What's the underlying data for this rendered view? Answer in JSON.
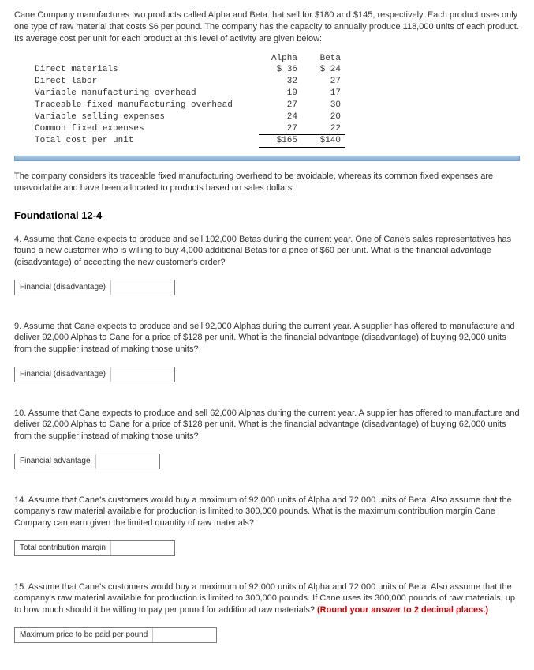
{
  "intro": "Cane Company manufactures two products called Alpha and Beta that sell for $180 and $145, respectively. Each product uses only one type of raw material that costs $6 per pound. The company has the capacity to annually produce 118,000 units of each product. Its average cost per unit for each product at this level of activity are given below:",
  "table": {
    "headers": {
      "label": "",
      "alpha": "Alpha",
      "beta": "Beta"
    },
    "rows": [
      {
        "label": "Direct materials",
        "alpha": "$ 36",
        "beta": "$ 24"
      },
      {
        "label": "Direct labor",
        "alpha": "32",
        "beta": "27"
      },
      {
        "label": "Variable manufacturing overhead",
        "alpha": "19",
        "beta": "17"
      },
      {
        "label": "Traceable fixed manufacturing overhead",
        "alpha": "27",
        "beta": "30"
      },
      {
        "label": "Variable selling expenses",
        "alpha": "24",
        "beta": "20"
      },
      {
        "label": "Common fixed expenses",
        "alpha": "27",
        "beta": "22"
      }
    ],
    "total": {
      "label": "Total cost per unit",
      "alpha": "$165",
      "beta": "$140"
    }
  },
  "note": "The company considers its traceable fixed manufacturing overhead to be avoidable, whereas its common fixed expenses are unavoidable and have been allocated to products based on sales dollars.",
  "section_title": "Foundational 12-4",
  "q4": {
    "text": "4. Assume that Cane expects to produce and sell 102,000 Betas during the current year. One of Cane's sales representatives has found a new customer who is willing to buy 4,000 additional Betas for a price of $60 per unit. What is the financial advantage (disadvantage) of accepting the new customer's order?",
    "box_label": "Financial (disadvantage)"
  },
  "q9": {
    "text": "9. Assume that Cane expects to produce and sell 92,000 Alphas during the current year. A supplier has offered to manufacture and deliver 92,000 Alphas to Cane for a price of $128 per unit. What is the financial advantage (disadvantage) of buying 92,000 units from the supplier instead of making those units?",
    "box_label": "Financial (disadvantage)"
  },
  "q10": {
    "text": "10. Assume that Cane expects to produce and sell 62,000 Alphas during the current year. A supplier has offered to manufacture and deliver 62,000 Alphas to Cane for a price of $128 per unit. What is the financial advantage (disadvantage) of buying 62,000 units from the supplier instead of making those units?",
    "box_label": "Financial advantage"
  },
  "q14": {
    "text": "14. Assume that Cane's customers would buy a maximum of 92,000 units of Alpha and 72,000 units of Beta. Also assume that the company's raw material available for production is limited to 300,000 pounds. What is the maximum contribution margin Cane Company can earn given the limited quantity of raw materials?",
    "box_label": "Total contribution margin"
  },
  "q15": {
    "text_a": "15. Assume that Cane's customers would buy a maximum of 92,000 units of Alpha and 72,000 units of Beta. Also assume that the company's raw material available for production is limited to 300,000 pounds. If Cane uses its 300,000 pounds of raw materials, up to how much should it be willing to pay per pound for additional raw materials? ",
    "text_b": "(Round your answer to 2 decimal places.)",
    "box_label": "Maximum price to be paid per pound"
  }
}
